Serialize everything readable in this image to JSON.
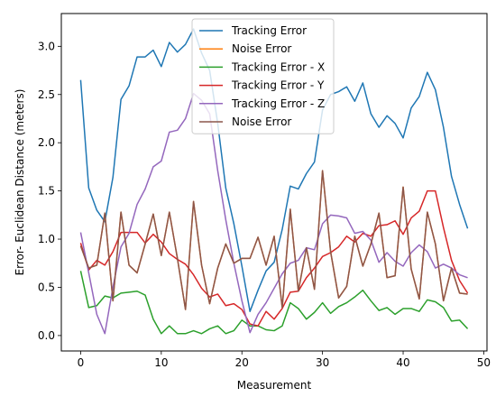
{
  "chart_data": {
    "type": "line",
    "title": "",
    "xlabel": "Measurement",
    "ylabel": "Error- Euclidean Distance (meters)",
    "xlim": [
      -2.4,
      50.4
    ],
    "ylim": [
      -0.16,
      3.34
    ],
    "xticks": [
      0,
      10,
      20,
      30,
      40,
      50
    ],
    "yticks": [
      0.0,
      0.5,
      1.0,
      1.5,
      2.0,
      2.5,
      3.0
    ],
    "xtick_labels": [
      "0",
      "10",
      "20",
      "30",
      "40",
      "50"
    ],
    "ytick_labels": [
      "0.0",
      "0.5",
      "1.0",
      "1.5",
      "2.0",
      "2.5",
      "3.0"
    ],
    "grid": false,
    "legend_position": "top-center",
    "x": [
      0,
      1,
      2,
      3,
      4,
      5,
      6,
      7,
      8,
      9,
      10,
      11,
      12,
      13,
      14,
      15,
      16,
      17,
      18,
      19,
      20,
      21,
      22,
      23,
      24,
      25,
      26,
      27,
      28,
      29,
      30,
      31,
      32,
      33,
      34,
      35,
      36,
      37,
      38,
      39,
      40,
      41,
      42,
      43,
      44,
      45,
      46,
      47,
      48
    ],
    "series": [
      {
        "name": "Tracking Error",
        "color": "#1f77b4",
        "values": [
          2.65,
          1.53,
          1.3,
          1.18,
          1.64,
          2.45,
          2.59,
          2.89,
          2.89,
          2.96,
          2.79,
          3.04,
          2.94,
          3.02,
          3.18,
          2.93,
          2.75,
          2.2,
          1.53,
          1.16,
          0.72,
          0.25,
          0.47,
          0.67,
          0.76,
          1.1,
          1.55,
          1.52,
          1.68,
          1.8,
          2.34,
          2.5,
          2.53,
          2.58,
          2.43,
          2.62,
          2.3,
          2.16,
          2.28,
          2.2,
          2.05,
          2.36,
          2.48,
          2.73,
          2.55,
          2.16,
          1.65,
          1.36,
          1.11
        ]
      },
      {
        "name": "Noise Error",
        "color": "#ff7f0e",
        "values": [
          0.93,
          0.7,
          0.73,
          1.27,
          0.36,
          1.28,
          0.73,
          0.65,
          0.95,
          1.26,
          0.83,
          1.28,
          0.8,
          0.27,
          1.39,
          0.73,
          0.33,
          0.7,
          0.95,
          0.75,
          0.8,
          0.8,
          1.02,
          0.73,
          1.03,
          0.29,
          1.31,
          0.46,
          0.91,
          0.48,
          1.71,
          0.87,
          0.39,
          0.51,
          1.03,
          0.72,
          0.95,
          1.27,
          0.6,
          0.62,
          1.54,
          0.69,
          0.38,
          1.28,
          0.95,
          0.36,
          0.7,
          0.44,
          0.43
        ]
      },
      {
        "name": "Tracking Error - X",
        "color": "#2ca02c",
        "values": [
          0.67,
          0.29,
          0.31,
          0.41,
          0.39,
          0.44,
          0.45,
          0.46,
          0.42,
          0.17,
          0.02,
          0.1,
          0.02,
          0.02,
          0.05,
          0.02,
          0.07,
          0.1,
          0.02,
          0.05,
          0.16,
          0.1,
          0.1,
          0.06,
          0.05,
          0.1,
          0.34,
          0.28,
          0.17,
          0.24,
          0.34,
          0.23,
          0.3,
          0.34,
          0.4,
          0.47,
          0.36,
          0.26,
          0.29,
          0.22,
          0.28,
          0.28,
          0.25,
          0.37,
          0.35,
          0.29,
          0.15,
          0.16,
          0.07
        ]
      },
      {
        "name": "Tracking Error - Y",
        "color": "#d62728",
        "values": [
          0.96,
          0.68,
          0.78,
          0.73,
          0.87,
          1.07,
          1.07,
          1.07,
          0.96,
          1.05,
          0.97,
          0.85,
          0.79,
          0.74,
          0.63,
          0.49,
          0.4,
          0.43,
          0.31,
          0.33,
          0.27,
          0.12,
          0.1,
          0.25,
          0.17,
          0.28,
          0.45,
          0.46,
          0.6,
          0.7,
          0.82,
          0.86,
          0.92,
          1.03,
          0.97,
          1.06,
          1.03,
          1.14,
          1.15,
          1.19,
          1.05,
          1.22,
          1.29,
          1.5,
          1.5,
          1.12,
          0.78,
          0.57,
          0.44
        ]
      },
      {
        "name": "Tracking Error - Z",
        "color": "#9467bd",
        "values": [
          1.07,
          0.65,
          0.22,
          0.02,
          0.5,
          0.92,
          1.06,
          1.36,
          1.52,
          1.75,
          1.81,
          2.11,
          2.13,
          2.25,
          2.51,
          2.44,
          2.3,
          1.71,
          1.2,
          0.75,
          0.36,
          0.03,
          0.22,
          0.34,
          0.49,
          0.64,
          0.75,
          0.78,
          0.91,
          0.89,
          1.16,
          1.25,
          1.24,
          1.22,
          1.06,
          1.08,
          0.99,
          0.76,
          0.86,
          0.77,
          0.72,
          0.86,
          0.94,
          0.87,
          0.7,
          0.74,
          0.7,
          0.63,
          0.6
        ]
      },
      {
        "name": "Noise Error",
        "color": "#8c564b",
        "values": [
          0.93,
          0.7,
          0.73,
          1.27,
          0.36,
          1.28,
          0.73,
          0.65,
          0.95,
          1.26,
          0.83,
          1.28,
          0.8,
          0.27,
          1.39,
          0.73,
          0.33,
          0.7,
          0.95,
          0.75,
          0.8,
          0.8,
          1.02,
          0.73,
          1.03,
          0.29,
          1.31,
          0.46,
          0.91,
          0.48,
          1.71,
          0.87,
          0.39,
          0.51,
          1.03,
          0.72,
          0.95,
          1.27,
          0.6,
          0.62,
          1.54,
          0.69,
          0.38,
          1.28,
          0.95,
          0.36,
          0.7,
          0.44,
          0.43
        ]
      }
    ]
  }
}
